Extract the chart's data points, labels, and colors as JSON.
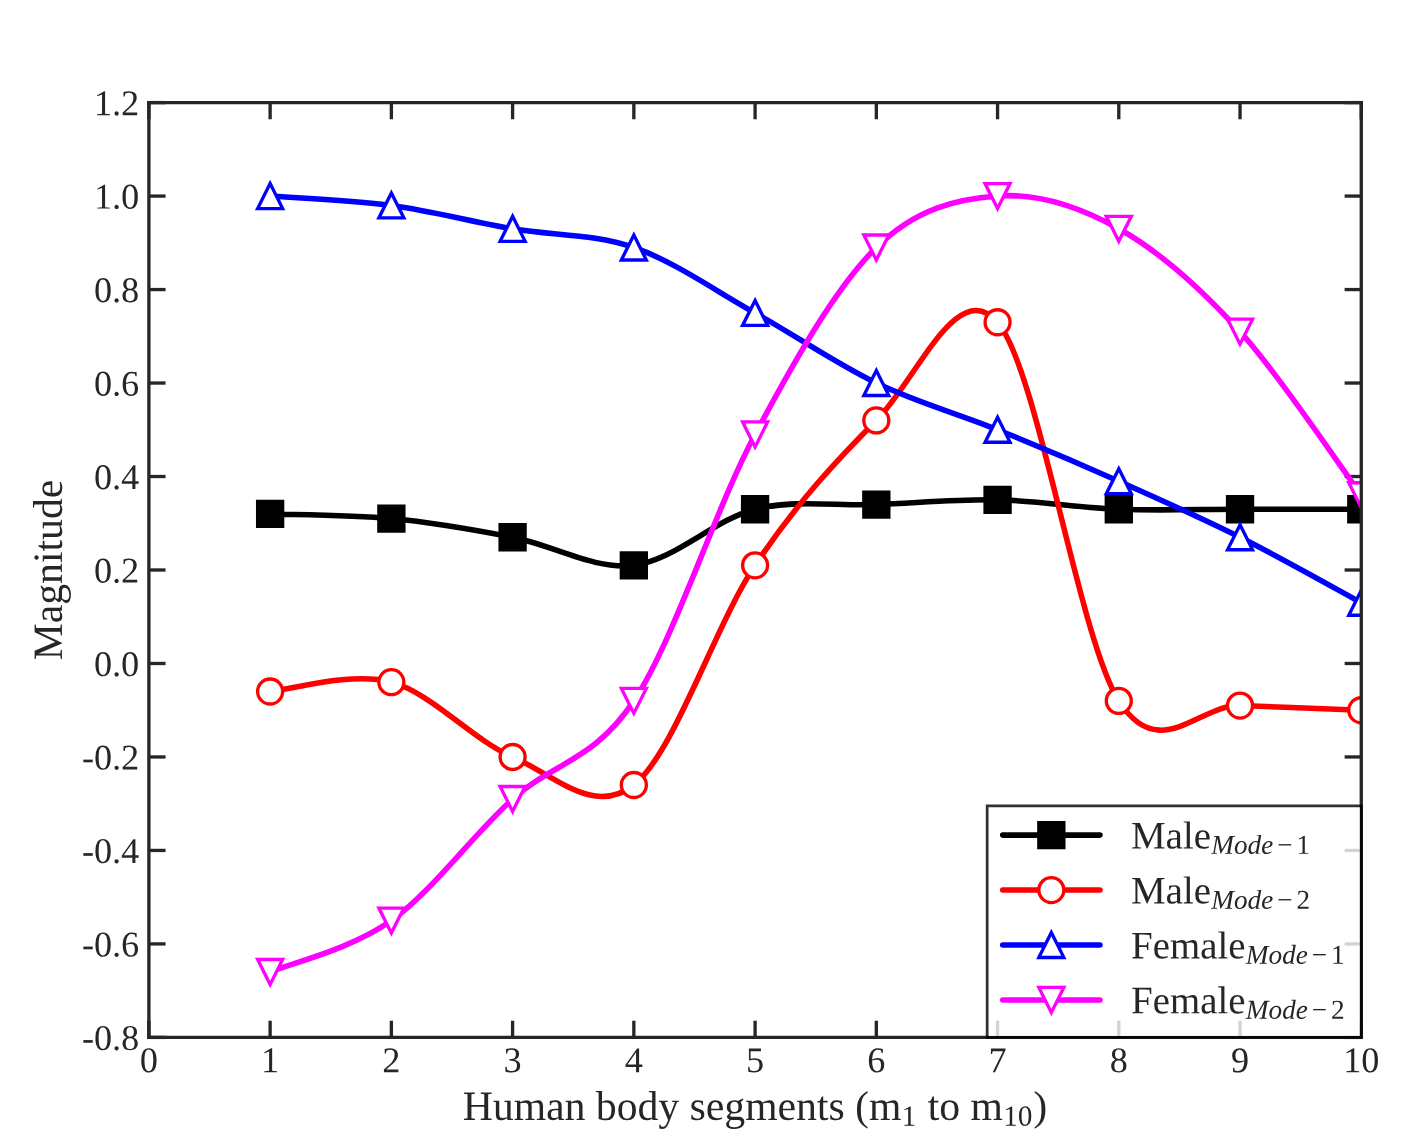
{
  "chart_data": {
    "type": "line",
    "xlabel": "Human body segments (m$_{1}$ to m$_{10}$)",
    "ylabel": "Magnitude",
    "x": [
      1,
      2,
      3,
      4,
      5,
      6,
      7,
      8,
      9,
      10
    ],
    "series": [
      {
        "name": "Male$_{Mode−1}$",
        "color": "#000000",
        "marker": "square",
        "values": [
          0.32,
          0.31,
          0.27,
          0.21,
          0.33,
          0.34,
          0.35,
          0.33,
          0.33,
          0.33
        ]
      },
      {
        "name": "Male$_{Mode−2}$",
        "color": "#ff0000",
        "marker": "circle",
        "values": [
          -0.06,
          -0.04,
          -0.2,
          -0.26,
          0.21,
          0.52,
          0.73,
          -0.08,
          -0.09,
          -0.1
        ]
      },
      {
        "name": "Female$_{Mode−1}$",
        "color": "#0000ff",
        "marker": "triangle",
        "values": [
          1.0,
          0.98,
          0.93,
          0.89,
          0.75,
          0.6,
          0.5,
          0.39,
          0.27,
          0.13
        ]
      },
      {
        "name": "Female$_{Mode−2}$",
        "color": "#ff00ff",
        "marker": "triangle_down",
        "values": [
          -0.66,
          -0.55,
          -0.29,
          -0.08,
          0.49,
          0.89,
          1.0,
          0.93,
          0.71,
          0.36
        ]
      }
    ],
    "xlim": [
      0,
      10
    ],
    "xticks": [
      0,
      1,
      2,
      3,
      4,
      5,
      6,
      7,
      8,
      9,
      10
    ],
    "ylim": [
      -0.8,
      1.2
    ],
    "yticks": [
      {
        "value": -0.8,
        "label": "-0.8"
      },
      {
        "value": -0.6,
        "label": "-0.6"
      },
      {
        "value": -0.4,
        "label": "-0.4"
      },
      {
        "value": -0.2,
        "label": "-0.2"
      },
      {
        "value": 0.0,
        "label": "0.0"
      },
      {
        "value": 0.2,
        "label": "0.2"
      },
      {
        "value": 0.4,
        "label": "0.4"
      },
      {
        "value": 0.6,
        "label": "0.6"
      },
      {
        "value": 0.8,
        "label": "0.8"
      },
      {
        "value": 1.0,
        "label": "1.0"
      },
      {
        "value": 1.2,
        "label": "1.2"
      }
    ],
    "grid": false,
    "legend": "bottom right",
    "line_style": "solid"
  }
}
